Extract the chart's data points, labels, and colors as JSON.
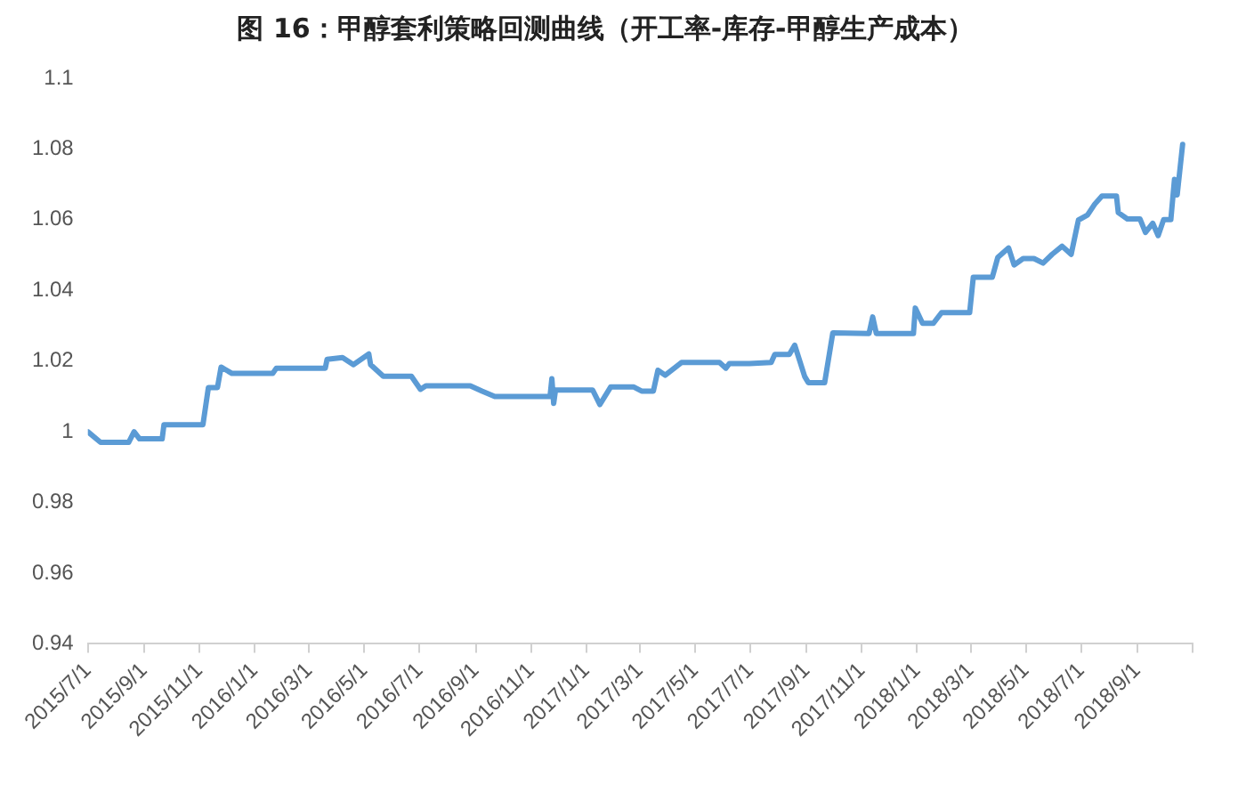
{
  "chart_data": {
    "type": "line",
    "title": "图 16：甲醇套利策略回测曲线（开工率-库存-甲醇生产成本）",
    "x": [
      "2015-07-01",
      "2015-07-15",
      "2015-08-15",
      "2015-08-21",
      "2015-08-27",
      "2015-09-21",
      "2015-09-23",
      "2015-11-05",
      "2015-11-11",
      "2015-11-21",
      "2015-11-25",
      "2015-12-07",
      "2016-01-21",
      "2016-01-25",
      "2016-03-19",
      "2016-03-21",
      "2016-04-07",
      "2016-04-19",
      "2016-05-06",
      "2016-05-08",
      "2016-05-22",
      "2016-06-22",
      "2016-07-02",
      "2016-07-08",
      "2016-08-26",
      "2016-09-08",
      "2016-09-22",
      "2016-11-22",
      "2016-11-24",
      "2016-11-26",
      "2016-11-28",
      "2017-01-08",
      "2017-01-16",
      "2017-01-28",
      "2017-02-22",
      "2017-03-03",
      "2017-03-16",
      "2017-03-21",
      "2017-03-29",
      "2017-04-16",
      "2017-05-28",
      "2017-06-04",
      "2017-06-08",
      "2017-06-30",
      "2017-07-24",
      "2017-07-28",
      "2017-08-13",
      "2017-08-19",
      "2017-08-30",
      "2017-09-03",
      "2017-09-21",
      "2017-09-30",
      "2017-11-09",
      "2017-11-13",
      "2017-11-17",
      "2017-12-28",
      "2017-12-30",
      "2018-01-07",
      "2018-01-19",
      "2018-01-28",
      "2018-02-28",
      "2018-03-04",
      "2018-03-25",
      "2018-03-31",
      "2018-04-12",
      "2018-04-18",
      "2018-04-28",
      "2018-05-10",
      "2018-05-20",
      "2018-05-30",
      "2018-06-10",
      "2018-06-20",
      "2018-06-28",
      "2018-07-08",
      "2018-07-16",
      "2018-07-24",
      "2018-08-09",
      "2018-08-11",
      "2018-08-21",
      "2018-09-04",
      "2018-09-10",
      "2018-09-18",
      "2018-09-24",
      "2018-09-30",
      "2018-10-08",
      "2018-10-12",
      "2018-10-15",
      "2018-10-21"
    ],
    "series": [
      {
        "color": "#5b9bd5",
        "values": [
          1.0,
          0.997,
          0.997,
          1.0,
          0.998,
          0.998,
          1.002,
          1.002,
          1.0125,
          1.0125,
          1.0183,
          1.0165,
          1.0165,
          1.018,
          1.018,
          1.0205,
          1.021,
          1.019,
          1.022,
          1.019,
          1.0157,
          1.0157,
          1.012,
          1.013,
          1.013,
          1.0115,
          1.01,
          1.01,
          1.015,
          1.008,
          1.0118,
          1.0118,
          1.0077,
          1.0127,
          1.0127,
          1.0115,
          1.0115,
          1.0174,
          1.016,
          1.0196,
          1.0196,
          1.018,
          1.0193,
          1.0193,
          1.0196,
          1.0219,
          1.0219,
          1.0245,
          1.0156,
          1.0139,
          1.0139,
          1.028,
          1.0278,
          1.0325,
          1.0278,
          1.0278,
          1.035,
          1.0307,
          1.0307,
          1.0337,
          1.0337,
          1.0437,
          1.0437,
          1.0493,
          1.052,
          1.0472,
          1.049,
          1.049,
          1.0477,
          1.0502,
          1.0525,
          1.0502,
          1.0599,
          1.0613,
          1.0644,
          1.0667,
          1.0667,
          1.062,
          1.0602,
          1.0602,
          1.0564,
          1.059,
          1.0555,
          1.06,
          1.06,
          1.0714,
          1.067,
          1.0813
        ]
      }
    ],
    "xlim": [
      "2015-07-01",
      "2018-11-01"
    ],
    "xticks": [
      {
        "value": "2015-07-01",
        "label": "2015/7/1"
      },
      {
        "value": "2015-09-01",
        "label": "2015/9/1"
      },
      {
        "value": "2015-11-01",
        "label": "2015/11/1"
      },
      {
        "value": "2016-01-01",
        "label": "2016/1/1"
      },
      {
        "value": "2016-03-01",
        "label": "2016/3/1"
      },
      {
        "value": "2016-05-01",
        "label": "2016/5/1"
      },
      {
        "value": "2016-07-01",
        "label": "2016/7/1"
      },
      {
        "value": "2016-09-01",
        "label": "2016/9/1"
      },
      {
        "value": "2016-11-01",
        "label": "2016/11/1"
      },
      {
        "value": "2017-01-01",
        "label": "2017/1/1"
      },
      {
        "value": "2017-03-01",
        "label": "2017/3/1"
      },
      {
        "value": "2017-05-01",
        "label": "2017/5/1"
      },
      {
        "value": "2017-07-01",
        "label": "2017/7/1"
      },
      {
        "value": "2017-09-01",
        "label": "2017/9/1"
      },
      {
        "value": "2017-11-01",
        "label": "2017/11/1"
      },
      {
        "value": "2018-01-01",
        "label": "2018/1/1"
      },
      {
        "value": "2018-03-01",
        "label": "2018/3/1"
      },
      {
        "value": "2018-05-01",
        "label": "2018/5/1"
      },
      {
        "value": "2018-07-01",
        "label": "2018/7/1"
      },
      {
        "value": "2018-09-01",
        "label": "2018/9/1"
      },
      {
        "value": "2018-11-01",
        "label": null
      }
    ],
    "ylim": [
      0.94,
      1.1
    ],
    "yticks": [
      0.94,
      0.96,
      0.98,
      1,
      1.02,
      1.04,
      1.06,
      1.08,
      1.1
    ],
    "grid": false,
    "legend": false,
    "marker": "none",
    "line_style": "solid"
  }
}
